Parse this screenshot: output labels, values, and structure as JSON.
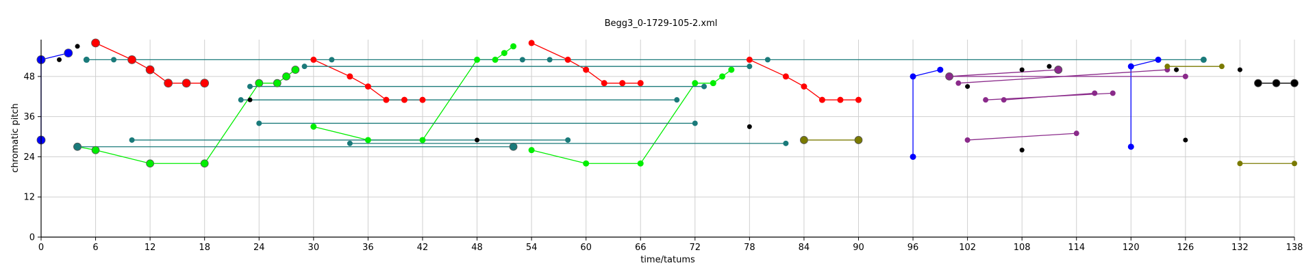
{
  "chart_data": {
    "type": "scatter",
    "title": "Begg3_0-1729-105-2.xml",
    "xlabel": "time/tatums",
    "ylabel": "chromatic pitch",
    "xlim": [
      0,
      138
    ],
    "ylim": [
      0,
      59
    ],
    "xticks": [
      0,
      6,
      12,
      18,
      24,
      30,
      36,
      42,
      48,
      54,
      60,
      66,
      72,
      78,
      84,
      90,
      96,
      102,
      108,
      114,
      120,
      126,
      132,
      138
    ],
    "yticks": [
      0,
      12,
      24,
      36,
      48
    ],
    "grid": true,
    "colors": {
      "blue": "#0000ff",
      "red": "#ff0000",
      "green": "#00ee00",
      "teal": "#1a7a7a",
      "black": "#000000",
      "purple": "#8a2a8a",
      "olive": "#7a7a00"
    },
    "series": [
      {
        "color": "#0000ff",
        "size": 6,
        "line": true,
        "points": [
          [
            0,
            29
          ],
          [
            0,
            53
          ]
        ]
      },
      {
        "color": "#0000ff",
        "size": 6,
        "line": true,
        "points": [
          [
            0,
            53
          ],
          [
            3,
            55
          ]
        ]
      },
      {
        "color": "#ff0000",
        "size": 6,
        "line": true,
        "points": [
          [
            6,
            58
          ],
          [
            10,
            53
          ],
          [
            12,
            50
          ],
          [
            14,
            46
          ],
          [
            16,
            46
          ],
          [
            18,
            46
          ]
        ]
      },
      {
        "color": "#00ee00",
        "size": 5.5,
        "line": true,
        "points": [
          [
            4,
            27
          ],
          [
            6,
            26
          ],
          [
            12,
            22
          ],
          [
            18,
            22
          ],
          [
            24,
            46
          ],
          [
            26,
            46
          ],
          [
            27,
            48
          ],
          [
            28,
            50
          ]
        ]
      },
      {
        "color": "#ff0000",
        "size": 4.5,
        "line": true,
        "points": [
          [
            30,
            53
          ],
          [
            34,
            48
          ],
          [
            36,
            45
          ],
          [
            38,
            41
          ],
          [
            40,
            41
          ],
          [
            42,
            41
          ]
        ]
      },
      {
        "color": "#00ee00",
        "size": 4.5,
        "line": true,
        "points": [
          [
            30,
            33
          ],
          [
            36,
            29
          ],
          [
            42,
            29
          ],
          [
            48,
            53
          ],
          [
            50,
            53
          ],
          [
            51,
            55
          ],
          [
            52,
            57
          ]
        ]
      },
      {
        "color": "#ff0000",
        "size": 4.5,
        "line": true,
        "points": [
          [
            54,
            58
          ],
          [
            58,
            53
          ],
          [
            60,
            50
          ],
          [
            62,
            46
          ],
          [
            64,
            46
          ],
          [
            66,
            46
          ]
        ]
      },
      {
        "color": "#00ee00",
        "size": 4.5,
        "line": true,
        "points": [
          [
            54,
            26
          ],
          [
            60,
            22
          ],
          [
            66,
            22
          ],
          [
            72,
            46
          ],
          [
            74,
            46
          ],
          [
            75,
            48
          ],
          [
            76,
            50
          ]
        ]
      },
      {
        "color": "#ff0000",
        "size": 4.5,
        "line": true,
        "points": [
          [
            78,
            53
          ],
          [
            82,
            48
          ],
          [
            84,
            45
          ],
          [
            86,
            41
          ],
          [
            88,
            41
          ],
          [
            90,
            41
          ]
        ]
      },
      {
        "color": "#0000ff",
        "size": 4.5,
        "line": true,
        "points": [
          [
            96,
            24
          ],
          [
            96,
            48
          ],
          [
            99,
            50
          ]
        ]
      },
      {
        "color": "#0000ff",
        "size": 4.5,
        "line": true,
        "points": [
          [
            120,
            27
          ],
          [
            120,
            51
          ],
          [
            123,
            53
          ]
        ]
      },
      {
        "color": "#1a7a7a",
        "size": 4.5,
        "line": true,
        "points": [
          [
            5,
            53
          ],
          [
            128,
            53
          ]
        ]
      },
      {
        "color": "#1a7a7a",
        "size": 4,
        "line": true,
        "points": [
          [
            29,
            51
          ],
          [
            78,
            51
          ]
        ]
      },
      {
        "color": "#1a7a7a",
        "size": 4,
        "line": true,
        "points": [
          [
            23,
            45
          ],
          [
            73,
            45
          ]
        ]
      },
      {
        "color": "#1a7a7a",
        "size": 4,
        "line": true,
        "points": [
          [
            22,
            41
          ],
          [
            70,
            41
          ]
        ]
      },
      {
        "color": "#1a7a7a",
        "size": 4,
        "line": true,
        "points": [
          [
            24,
            34
          ],
          [
            72,
            34
          ]
        ]
      },
      {
        "color": "#1a7a7a",
        "size": 4,
        "line": true,
        "points": [
          [
            10,
            29
          ],
          [
            58,
            29
          ]
        ]
      },
      {
        "color": "#1a7a7a",
        "size": 4,
        "line": true,
        "points": [
          [
            34,
            28
          ],
          [
            82,
            28
          ]
        ]
      },
      {
        "color": "#1a7a7a",
        "size": 5.5,
        "line": true,
        "points": [
          [
            4,
            27
          ],
          [
            52,
            27
          ]
        ]
      },
      {
        "color": "#1a7a7a",
        "size": 4,
        "line": false,
        "points": [
          [
            8,
            53
          ],
          [
            32,
            53
          ],
          [
            53,
            53
          ],
          [
            56,
            53
          ],
          [
            80,
            53
          ],
          [
            128,
            53
          ]
        ]
      },
      {
        "color": "#8a2a8a",
        "size": 5.5,
        "line": true,
        "points": [
          [
            100,
            48
          ],
          [
            112,
            50
          ]
        ]
      },
      {
        "color": "#8a2a8a",
        "size": 5.5,
        "line": false,
        "points": [
          [
            112,
            50
          ]
        ]
      },
      {
        "color": "#8a2a8a",
        "size": 4,
        "line": true,
        "points": [
          [
            100,
            48
          ],
          [
            126,
            48
          ]
        ]
      },
      {
        "color": "#8a2a8a",
        "size": 4,
        "line": true,
        "points": [
          [
            101,
            46
          ],
          [
            124,
            50
          ]
        ]
      },
      {
        "color": "#8a2a8a",
        "size": 4,
        "line": true,
        "points": [
          [
            104,
            41
          ],
          [
            118,
            43
          ]
        ]
      },
      {
        "color": "#8a2a8a",
        "size": 4,
        "line": true,
        "points": [
          [
            106,
            41
          ],
          [
            116,
            43
          ]
        ]
      },
      {
        "color": "#8a2a8a",
        "size": 4,
        "line": true,
        "points": [
          [
            102,
            29
          ],
          [
            114,
            31
          ]
        ]
      },
      {
        "color": "#7a7a00",
        "size": 5.5,
        "line": true,
        "points": [
          [
            84,
            29
          ],
          [
            90,
            29
          ]
        ]
      },
      {
        "color": "#7a7a00",
        "size": 4,
        "line": true,
        "points": [
          [
            124,
            51
          ],
          [
            130,
            51
          ]
        ]
      },
      {
        "color": "#7a7a00",
        "size": 4,
        "line": true,
        "points": [
          [
            132,
            22
          ],
          [
            138,
            22
          ]
        ]
      },
      {
        "color": "#000000",
        "size": 5.5,
        "line": true,
        "points": [
          [
            134,
            46
          ],
          [
            138,
            46
          ]
        ]
      },
      {
        "color": "#000000",
        "size": 5.5,
        "line": false,
        "points": [
          [
            136,
            46
          ]
        ]
      },
      {
        "color": "#000000",
        "size": 3.5,
        "line": false,
        "points": [
          [
            2,
            53
          ],
          [
            4,
            57
          ],
          [
            23,
            41
          ],
          [
            48,
            29
          ],
          [
            78,
            33
          ],
          [
            102,
            45
          ],
          [
            108,
            50
          ],
          [
            108,
            26
          ],
          [
            111,
            51
          ],
          [
            126,
            29
          ],
          [
            132,
            50
          ],
          [
            125,
            50
          ]
        ]
      }
    ]
  }
}
